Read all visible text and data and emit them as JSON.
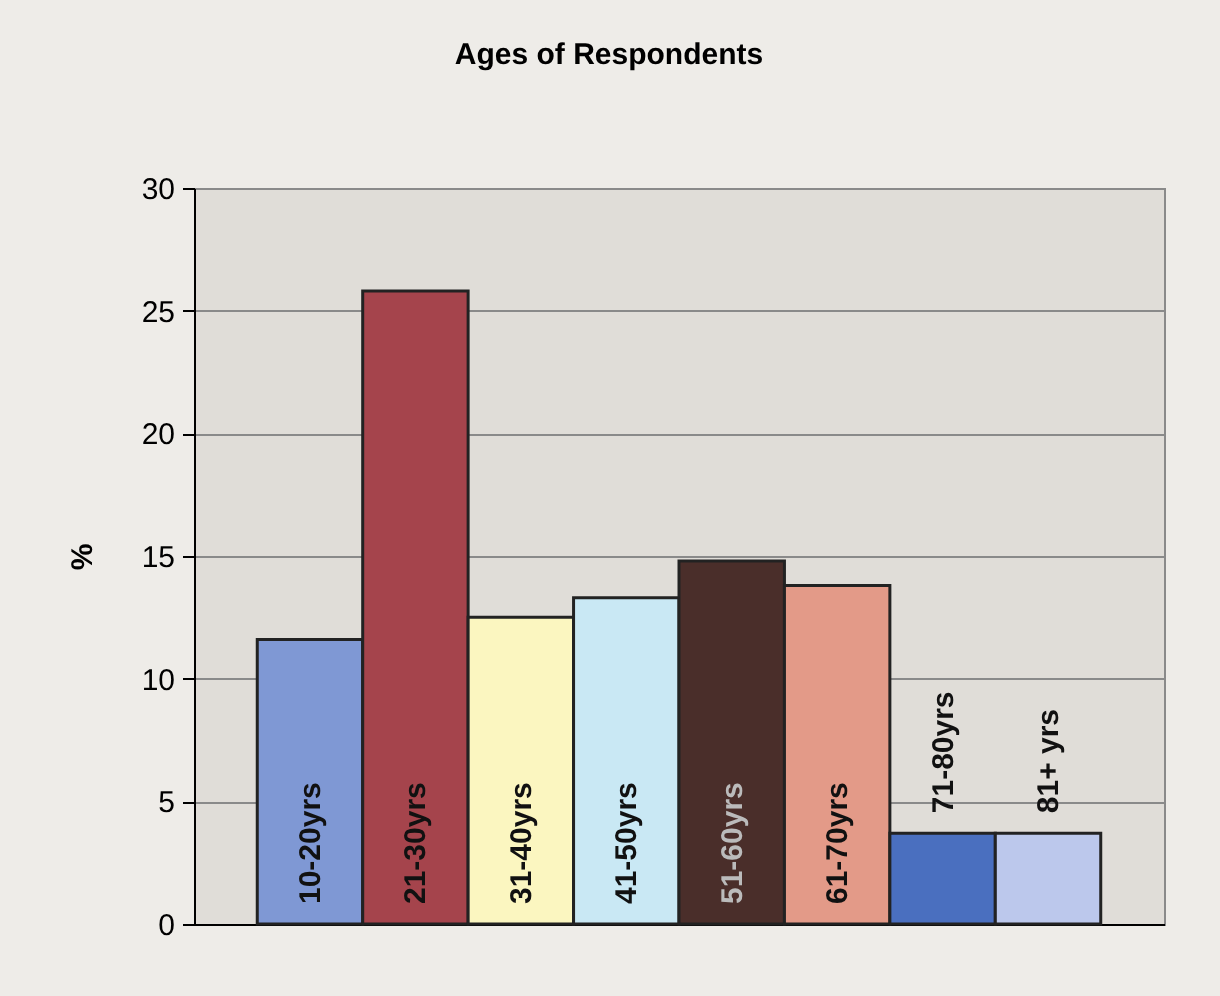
{
  "chart_data": {
    "type": "bar",
    "title": "Ages of Respondents",
    "ylabel": "%",
    "categories": [
      "10-20yrs",
      "21-30yrs",
      "31-40yrs",
      "41-50yrs",
      "51-60yrs",
      "61-70yrs",
      "71-80yrs",
      "81+ yrs"
    ],
    "values": [
      11.6,
      25.8,
      12.5,
      13.3,
      14.8,
      13.8,
      3.7,
      3.7
    ],
    "colors": [
      "#7f98d4",
      "#a5444c",
      "#fbf6c0",
      "#c9e8f4",
      "#4a2e2a",
      "#e39a88",
      "#4a6fbf",
      "#bcc8ec"
    ],
    "ylim": [
      0,
      30
    ],
    "yticks": [
      0,
      5,
      10,
      15,
      20,
      25,
      30
    ],
    "grid": "y",
    "tick_labels": "y"
  }
}
